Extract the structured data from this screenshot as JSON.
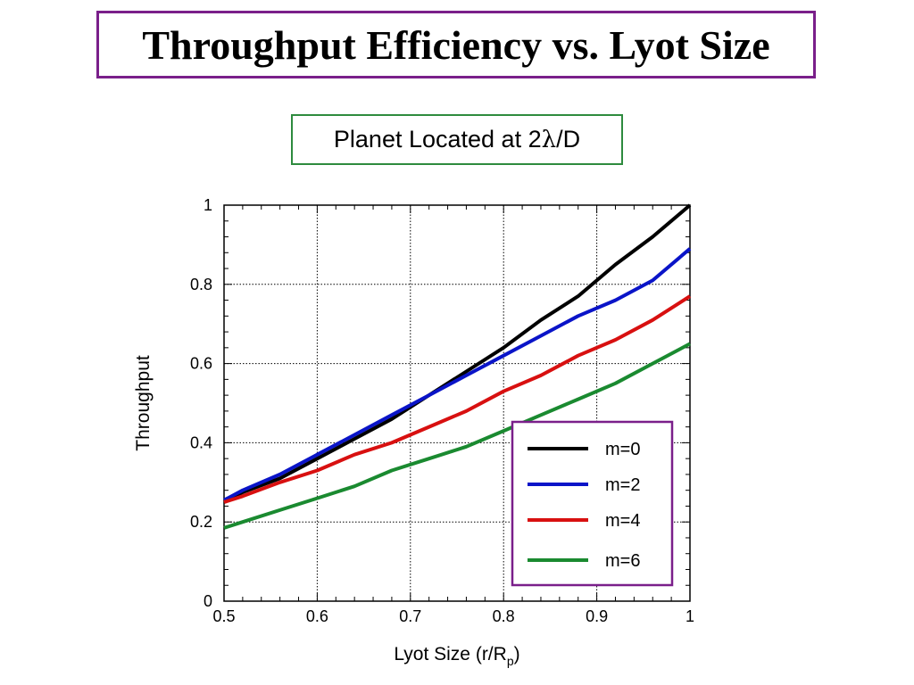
{
  "slide_title": "Throughput Efficiency vs. Lyot Size",
  "subtitle": {
    "prefix": "Planet Located at 2",
    "symbol": "λ",
    "suffix": "/D"
  },
  "colors": {
    "title_border": "#7a1f8a",
    "subtitle_border": "#2e8b3e",
    "legend_border": "#7a1f8a"
  },
  "chart_data": {
    "type": "line",
    "title": "",
    "xlabel": "Lyot Size (r/R",
    "xlabel_sub": "p",
    "xlabel_close": ")",
    "ylabel": "Throughput",
    "xlim": [
      0.5,
      1.0
    ],
    "ylim": [
      0,
      1.0
    ],
    "xticks": [
      0.5,
      0.6,
      0.7,
      0.8,
      0.9,
      1.0
    ],
    "xtick_labels": [
      "0.5",
      "0.6",
      "0.7",
      "0.8",
      "0.9",
      "1"
    ],
    "yticks": [
      0,
      0.2,
      0.4,
      0.6,
      0.8,
      1.0
    ],
    "ytick_labels": [
      "0",
      "0.2",
      "0.4",
      "0.6",
      "0.8",
      "1"
    ],
    "grid": true,
    "legend_position": "bottom-right",
    "series": [
      {
        "name": "m=0",
        "color": "#000000",
        "x": [
          0.5,
          0.52,
          0.56,
          0.6,
          0.64,
          0.68,
          0.72,
          0.76,
          0.8,
          0.84,
          0.88,
          0.92,
          0.96,
          1.0
        ],
        "y": [
          0.25,
          0.275,
          0.31,
          0.36,
          0.41,
          0.46,
          0.52,
          0.58,
          0.64,
          0.71,
          0.77,
          0.85,
          0.92,
          1.0
        ]
      },
      {
        "name": "m=2",
        "color": "#0a14c8",
        "x": [
          0.5,
          0.52,
          0.56,
          0.6,
          0.64,
          0.68,
          0.72,
          0.76,
          0.8,
          0.84,
          0.88,
          0.92,
          0.96,
          1.0
        ],
        "y": [
          0.255,
          0.28,
          0.32,
          0.37,
          0.42,
          0.47,
          0.52,
          0.57,
          0.62,
          0.67,
          0.72,
          0.76,
          0.81,
          0.89
        ]
      },
      {
        "name": "m=4",
        "color": "#d81010",
        "x": [
          0.5,
          0.52,
          0.56,
          0.6,
          0.64,
          0.68,
          0.72,
          0.76,
          0.8,
          0.84,
          0.88,
          0.92,
          0.96,
          1.0
        ],
        "y": [
          0.25,
          0.265,
          0.3,
          0.33,
          0.37,
          0.4,
          0.44,
          0.48,
          0.53,
          0.57,
          0.62,
          0.66,
          0.71,
          0.77
        ]
      },
      {
        "name": "m=6",
        "color": "#1a8a30",
        "x": [
          0.5,
          0.52,
          0.56,
          0.6,
          0.64,
          0.68,
          0.72,
          0.76,
          0.8,
          0.84,
          0.88,
          0.92,
          0.96,
          1.0
        ],
        "y": [
          0.185,
          0.2,
          0.23,
          0.26,
          0.29,
          0.33,
          0.36,
          0.39,
          0.43,
          0.47,
          0.51,
          0.55,
          0.6,
          0.65
        ]
      }
    ]
  }
}
